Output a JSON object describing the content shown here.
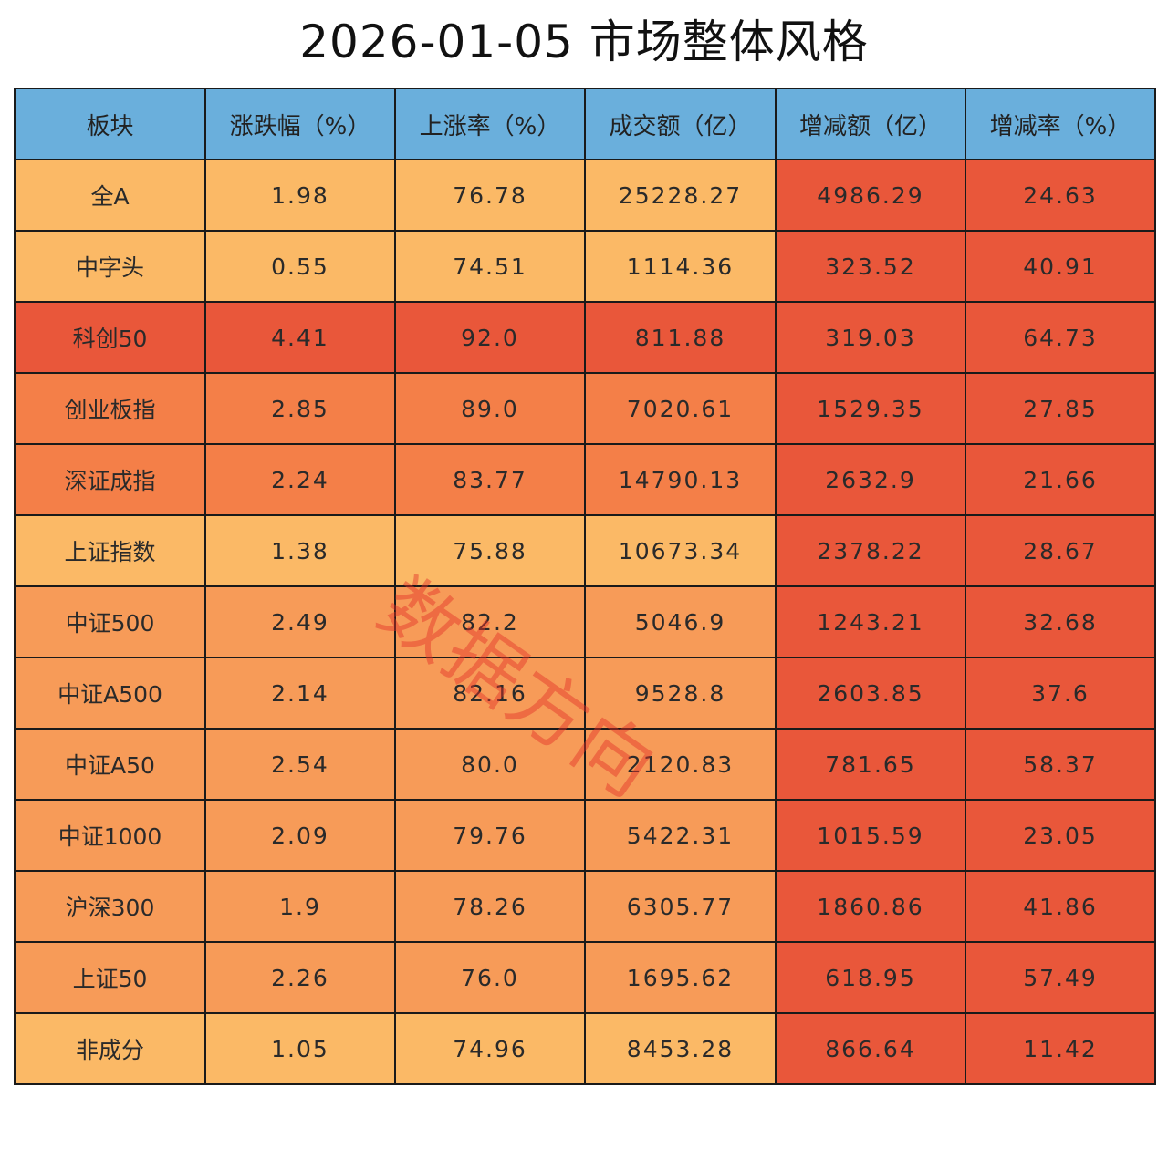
{
  "title": "2026-01-05 市场整体风格",
  "watermark": "数据方向",
  "palette": {
    "header": "#6aafdc",
    "light": "#fbb966",
    "mid": "#f79b58",
    "orange": "#f47f48",
    "red": "#e9573a"
  },
  "chart_data": {
    "type": "table",
    "columns": [
      "板块",
      "涨跌幅（%）",
      "上涨率（%）",
      "成交额（亿）",
      "增减额（亿）",
      "增减率（%）"
    ],
    "rows": [
      {
        "name": "全A",
        "values": [
          "1.98",
          "76.78",
          "25228.27",
          "4986.29",
          "24.63"
        ]
      },
      {
        "name": "中字头",
        "values": [
          "0.55",
          "74.51",
          "1114.36",
          "323.52",
          "40.91"
        ]
      },
      {
        "name": "科创50",
        "values": [
          "4.41",
          "92.0",
          "811.88",
          "319.03",
          "64.73"
        ]
      },
      {
        "name": "创业板指",
        "values": [
          "2.85",
          "89.0",
          "7020.61",
          "1529.35",
          "27.85"
        ]
      },
      {
        "name": "深证成指",
        "values": [
          "2.24",
          "83.77",
          "14790.13",
          "2632.9",
          "21.66"
        ]
      },
      {
        "name": "上证指数",
        "values": [
          "1.38",
          "75.88",
          "10673.34",
          "2378.22",
          "28.67"
        ]
      },
      {
        "name": "中证500",
        "values": [
          "2.49",
          "82.2",
          "5046.9",
          "1243.21",
          "32.68"
        ]
      },
      {
        "name": "中证A500",
        "values": [
          "2.14",
          "82.16",
          "9528.8",
          "2603.85",
          "37.6"
        ]
      },
      {
        "name": "中证A50",
        "values": [
          "2.54",
          "80.0",
          "2120.83",
          "781.65",
          "58.37"
        ]
      },
      {
        "name": "中证1000",
        "values": [
          "2.09",
          "79.76",
          "5422.31",
          "1015.59",
          "23.05"
        ]
      },
      {
        "name": "沪深300",
        "values": [
          "1.9",
          "78.26",
          "6305.77",
          "1860.86",
          "41.86"
        ]
      },
      {
        "name": "上证50",
        "values": [
          "2.26",
          "76.0",
          "1695.62",
          "618.95",
          "57.49"
        ]
      },
      {
        "name": "非成分",
        "values": [
          "1.05",
          "74.96",
          "8453.28",
          "866.64",
          "11.42"
        ]
      }
    ],
    "cell_colors": [
      [
        "light",
        "light",
        "light",
        "light",
        "red",
        "red"
      ],
      [
        "light",
        "light",
        "light",
        "light",
        "red",
        "red"
      ],
      [
        "red",
        "red",
        "red",
        "red",
        "red",
        "red"
      ],
      [
        "orange",
        "orange",
        "orange",
        "orange",
        "red",
        "red"
      ],
      [
        "orange",
        "orange",
        "orange",
        "orange",
        "red",
        "red"
      ],
      [
        "light",
        "light",
        "light",
        "light",
        "red",
        "red"
      ],
      [
        "mid",
        "mid",
        "mid",
        "mid",
        "red",
        "red"
      ],
      [
        "mid",
        "mid",
        "mid",
        "mid",
        "red",
        "red"
      ],
      [
        "mid",
        "mid",
        "mid",
        "mid",
        "red",
        "red"
      ],
      [
        "mid",
        "mid",
        "mid",
        "mid",
        "red",
        "red"
      ],
      [
        "mid",
        "mid",
        "mid",
        "mid",
        "red",
        "red"
      ],
      [
        "mid",
        "mid",
        "mid",
        "mid",
        "red",
        "red"
      ],
      [
        "light",
        "light",
        "light",
        "light",
        "red",
        "red"
      ]
    ]
  }
}
